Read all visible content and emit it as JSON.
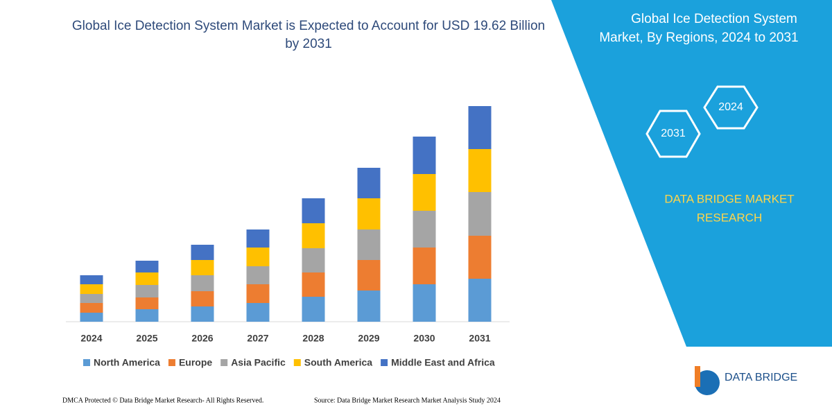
{
  "chart_data": {
    "type": "stacked_bar",
    "title": "Global Ice Detection System Market is Expected to Account for USD 19.62 Billion by 2031",
    "categories": [
      "2024",
      "2025",
      "2026",
      "2027",
      "2028",
      "2029",
      "2030",
      "2031"
    ],
    "series": [
      {
        "name": "North America",
        "color": "#5b9bd5",
        "values": [
          13,
          18,
          22,
          27,
          36,
          45,
          54,
          62
        ]
      },
      {
        "name": "Europe",
        "color": "#ed7d31",
        "values": [
          14,
          17,
          22,
          27,
          35,
          44,
          53,
          62
        ]
      },
      {
        "name": "Asia Pacific",
        "color": "#a5a5a5",
        "values": [
          13,
          18,
          23,
          26,
          35,
          44,
          53,
          63
        ]
      },
      {
        "name": "South America",
        "color": "#ffc000",
        "values": [
          14,
          18,
          22,
          27,
          36,
          45,
          53,
          62
        ]
      },
      {
        "name": "Middle East and Africa",
        "color": "#4472c4",
        "values": [
          13,
          17,
          22,
          26,
          36,
          44,
          54,
          62
        ]
      }
    ]
  },
  "panel": {
    "title_line1": "Global Ice Detection System",
    "title_line2": "Market, By Regions, 2024 to 2031",
    "hex_start": "2024",
    "hex_end": "2031",
    "brand_line1": "DATA BRIDGE MARKET",
    "brand_line2": "RESEARCH"
  },
  "logo": {
    "name": "DATA BRIDGE"
  },
  "footer": {
    "left": "DMCA Protected © Data Bridge Market Research-  All Rights Reserved.",
    "right": "Source: Data Bridge Market Research  Market Analysis Study 2024"
  }
}
